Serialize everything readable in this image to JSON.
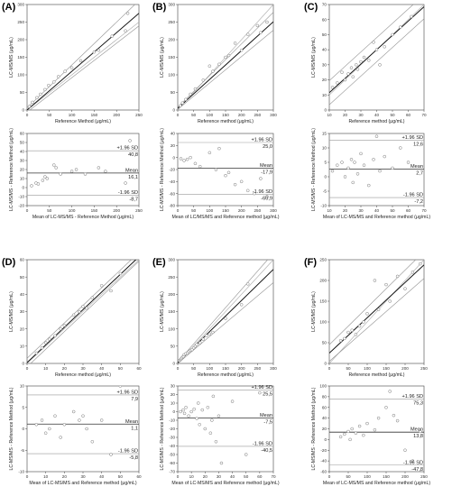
{
  "chart_data": [
    {
      "panel": "(A)",
      "type": "scatter",
      "plot": "regression",
      "xlabel": "Reference Method (μg/mL)",
      "ylabel": "LC-MS/MS (μg/mL)",
      "xlim": [
        0,
        250
      ],
      "ylim": [
        0,
        300
      ],
      "xticks": [
        0,
        50,
        100,
        150,
        200,
        250
      ],
      "yticks": [
        0,
        50,
        100,
        150,
        200,
        250,
        300
      ],
      "x": [
        5,
        12,
        22,
        30,
        40,
        48,
        60,
        70,
        85,
        100,
        120,
        150,
        160,
        190,
        220,
        225
      ],
      "y": [
        10,
        22,
        35,
        45,
        58,
        70,
        80,
        95,
        110,
        120,
        140,
        165,
        170,
        210,
        225,
        275
      ],
      "regression": {
        "intercept": 0,
        "slope": 1.1
      },
      "ci_upper": {
        "intercept": 6,
        "slope": 1.22
      },
      "ci_lower": {
        "intercept": -6,
        "slope": 0.98
      },
      "identity": {
        "intercept": 0,
        "slope": 1
      }
    },
    {
      "panel": "",
      "type": "scatter",
      "plot": "bland-altman",
      "xlabel": "Mean of LC-MS/MS - Reference Method (μg/mL)",
      "ylabel": "LC-MS/MS - Reference Method (μg/mL)",
      "xlim": [
        0,
        250
      ],
      "ylim": [
        -20,
        60
      ],
      "xticks": [
        0,
        50,
        100,
        150,
        200,
        250
      ],
      "yticks": [
        -20,
        -10,
        0,
        10,
        20,
        30,
        40,
        50,
        60
      ],
      "x": [
        10,
        20,
        25,
        35,
        40,
        45,
        60,
        65,
        75,
        100,
        110,
        130,
        160,
        175,
        220,
        230
      ],
      "y": [
        2,
        5,
        4,
        8,
        12,
        10,
        25,
        22,
        15,
        18,
        20,
        15,
        22,
        18,
        5,
        52
      ],
      "lines": [
        {
          "value": 40.8,
          "label": "+1.96 SD",
          "value_label": "40,8"
        },
        {
          "value": 16.1,
          "label": "Mean",
          "value_label": "16,1"
        },
        {
          "value": -8.7,
          "label": "-1.96 SD",
          "value_label": "-8,7"
        }
      ]
    },
    {
      "panel": "(B)",
      "type": "scatter",
      "plot": "regression",
      "xlabel": "Reference method (μg/mL)",
      "ylabel": "LC-MS/MS (μg/mL)",
      "xlim": [
        0,
        300
      ],
      "ylim": [
        0,
        300
      ],
      "xticks": [
        0,
        50,
        100,
        150,
        200,
        250,
        300
      ],
      "yticks": [
        0,
        50,
        100,
        150,
        200,
        250,
        300
      ],
      "x": [
        8,
        15,
        25,
        40,
        55,
        80,
        100,
        110,
        130,
        150,
        160,
        180,
        200,
        220,
        250,
        260,
        280
      ],
      "y": [
        12,
        20,
        30,
        45,
        60,
        85,
        125,
        110,
        130,
        150,
        155,
        190,
        170,
        215,
        240,
        220,
        250
      ],
      "regression": {
        "intercept": 5,
        "slope": 0.82
      },
      "ci_upper": {
        "intercept": 8,
        "slope": 0.9
      },
      "ci_lower": {
        "intercept": 2,
        "slope": 0.75
      },
      "identity": {
        "intercept": 0,
        "slope": 1
      }
    },
    {
      "panel": "",
      "type": "scatter",
      "plot": "bland-altman",
      "xlabel": "Mean of LC/MS/MS and Reference method (μg/mL)",
      "ylabel": "LC-MS/MS - Reference Method (μg/mL)",
      "xlim": [
        0,
        300
      ],
      "ylim": [
        -80,
        40
      ],
      "xticks": [
        0,
        50,
        100,
        150,
        200,
        250,
        300
      ],
      "yticks": [
        -80,
        -60,
        -40,
        -20,
        0,
        20,
        40
      ],
      "x": [
        10,
        20,
        30,
        40,
        55,
        70,
        100,
        120,
        130,
        150,
        160,
        180,
        200,
        220,
        240,
        260,
        280
      ],
      "y": [
        -2,
        -5,
        -3,
        0,
        -10,
        -15,
        8,
        -20,
        15,
        -30,
        -25,
        -45,
        -40,
        -55,
        -60,
        -35,
        -65
      ],
      "lines": [
        {
          "value": 25.0,
          "label": "+1.96 SD",
          "value_label": "25,0"
        },
        {
          "value": -17.9,
          "label": "Mean",
          "value_label": "-17,9"
        },
        {
          "value": -60.9,
          "label": "-1.96 SD",
          "value_label": "-60,9"
        }
      ]
    },
    {
      "panel": "(C)",
      "type": "scatter",
      "plot": "regression",
      "xlabel": "Reference method (μg/mL)",
      "ylabel": "LC-MS/MS (μg/mL)",
      "xlim": [
        10,
        70
      ],
      "ylim": [
        0,
        70
      ],
      "xticks": [
        10,
        20,
        30,
        40,
        50,
        60,
        70
      ],
      "yticks": [
        0,
        10,
        20,
        30,
        40,
        50,
        60,
        70
      ],
      "x": [
        12,
        15,
        18,
        20,
        22,
        24,
        25,
        27,
        28,
        30,
        32,
        35,
        38,
        40,
        42,
        45,
        50,
        55,
        62
      ],
      "y": [
        15,
        18,
        25,
        20,
        24,
        28,
        22,
        30,
        27,
        32,
        35,
        33,
        45,
        40,
        30,
        42,
        50,
        55,
        62
      ],
      "regression": {
        "intercept": 2,
        "slope": 0.95
      },
      "ci_upper": {
        "intercept": 10,
        "slope": 0.95
      },
      "ci_lower": {
        "intercept": -6,
        "slope": 0.95
      },
      "identity": {
        "intercept": 0,
        "slope": 1
      }
    },
    {
      "panel": "",
      "type": "scatter",
      "plot": "bland-altman",
      "xlabel": "Mean of LC-MS/MS and  Reference method (μg/mL)",
      "ylabel": "LC-MS/MS - Reference Method (μg/mL)",
      "xlim": [
        10,
        70
      ],
      "ylim": [
        -10,
        15
      ],
      "xticks": [
        10,
        20,
        30,
        40,
        50,
        60,
        70
      ],
      "yticks": [
        -10,
        -5,
        0,
        5,
        10,
        15
      ],
      "x": [
        12,
        15,
        18,
        20,
        22,
        24,
        25,
        26,
        28,
        30,
        32,
        35,
        38,
        40,
        42,
        45,
        50,
        55,
        60
      ],
      "y": [
        2,
        4,
        5,
        0,
        3,
        6,
        -2,
        5,
        1,
        8,
        4,
        -3,
        6,
        14,
        2,
        7,
        3,
        10,
        5
      ],
      "lines": [
        {
          "value": 12.6,
          "label": "+1.96 SD",
          "value_label": "12,6"
        },
        {
          "value": 2.7,
          "label": "Mean",
          "value_label": "2,7"
        },
        {
          "value": -7.2,
          "label": "-1.96 SD",
          "value_label": "-7,2"
        }
      ]
    },
    {
      "panel": "(D)",
      "type": "scatter",
      "plot": "regression",
      "xlabel": "Reference method (μg/mL)",
      "ylabel": "LC-MS/MS (μg/mL)",
      "xlim": [
        0,
        60
      ],
      "ylim": [
        0,
        60
      ],
      "xticks": [
        0,
        10,
        20,
        30,
        40,
        50,
        60
      ],
      "yticks": [
        0,
        10,
        20,
        30,
        40,
        50,
        60
      ],
      "x": [
        5,
        8,
        10,
        12,
        15,
        18,
        20,
        25,
        28,
        30,
        32,
        35,
        40,
        45,
        50
      ],
      "y": [
        6,
        9,
        12,
        14,
        16,
        20,
        22,
        28,
        30,
        33,
        32,
        38,
        45,
        42,
        52
      ],
      "regression": {
        "intercept": 0.5,
        "slope": 1.02
      },
      "ci_upper": {
        "intercept": 3,
        "slope": 1.02
      },
      "ci_lower": {
        "intercept": -2,
        "slope": 1.02
      },
      "identity": {
        "intercept": 0,
        "slope": 1
      }
    },
    {
      "panel": "",
      "type": "scatter",
      "plot": "bland-altman",
      "xlabel": "Mean of LC-MS/MS and Reference method (μg/mL)",
      "ylabel": "LC-MS/MS - Reference Method (μg/mL)",
      "xlim": [
        0,
        60
      ],
      "ylim": [
        -10,
        10
      ],
      "xticks": [
        0,
        10,
        20,
        30,
        40,
        50,
        60
      ],
      "yticks": [
        -10,
        -5,
        0,
        5,
        10
      ],
      "x": [
        5,
        8,
        10,
        12,
        15,
        18,
        20,
        25,
        28,
        30,
        32,
        35,
        40,
        45,
        50
      ],
      "y": [
        1,
        2,
        -1,
        0,
        3,
        -2,
        1,
        4,
        2,
        3,
        0,
        -3,
        2,
        -6,
        10
      ],
      "lines": [
        {
          "value": 7.9,
          "label": "+1.96 SD",
          "value_label": "7,9"
        },
        {
          "value": 1.1,
          "label": "Mean",
          "value_label": "1,1"
        },
        {
          "value": -5.8,
          "label": "-1.96 SD",
          "value_label": "-5,8"
        }
      ]
    },
    {
      "panel": "(E)",
      "type": "scatter",
      "plot": "regression",
      "xlabel": "Reference method (μg/mL)",
      "ylabel": "LC-MS/MS (μg/mL)",
      "xlim": [
        0,
        300
      ],
      "ylim": [
        0,
        300
      ],
      "xticks": [
        0,
        50,
        100,
        150,
        200,
        250,
        300
      ],
      "yticks": [
        0,
        50,
        100,
        150,
        200,
        250,
        300
      ],
      "x": [
        5,
        8,
        10,
        12,
        15,
        18,
        20,
        25,
        30,
        35,
        40,
        45,
        50,
        55,
        60,
        70,
        80,
        90,
        100,
        110,
        150,
        200,
        220
      ],
      "y": [
        8,
        10,
        12,
        15,
        18,
        20,
        25,
        28,
        30,
        35,
        38,
        40,
        45,
        50,
        55,
        60,
        70,
        80,
        85,
        90,
        130,
        170,
        230
      ],
      "regression": {
        "intercept": 2,
        "slope": 0.9
      },
      "ci_upper": {
        "intercept": 4,
        "slope": 1.05
      },
      "ci_lower": {
        "intercept": 0,
        "slope": 0.78
      },
      "identity": {
        "intercept": 0,
        "slope": 1
      }
    },
    {
      "panel": "",
      "type": "scatter",
      "plot": "bland-altman",
      "xlabel": "Mean of LC-MS/MS and Reference method (μg/mL)",
      "ylabel": "LC-MS/MS - Reference Method (μg/mL)",
      "xlim": [
        0,
        70
      ],
      "ylim": [
        -70,
        30
      ],
      "xticks": [
        0,
        10,
        20,
        30,
        40,
        50,
        60,
        70
      ],
      "yticks": [
        -70,
        -60,
        -50,
        -40,
        -30,
        -20,
        -10,
        0,
        10,
        20,
        30
      ],
      "x": [
        2,
        4,
        5,
        6,
        8,
        10,
        12,
        14,
        15,
        16,
        18,
        20,
        22,
        24,
        25,
        26,
        28,
        30,
        32,
        40,
        50,
        60
      ],
      "y": [
        0,
        2,
        -2,
        5,
        -5,
        0,
        3,
        -8,
        10,
        -15,
        2,
        -20,
        5,
        -25,
        -10,
        18,
        -35,
        -5,
        -60,
        12,
        -50,
        22
      ],
      "lines": [
        {
          "value": 25.5,
          "label": "+1.96 SD",
          "value_label": "25,5"
        },
        {
          "value": -7.5,
          "label": "Mean",
          "value_label": "-7,5"
        },
        {
          "value": -40.5,
          "label": "-1.96 SD",
          "value_label": "-40,5"
        }
      ]
    },
    {
      "panel": "(F)",
      "type": "scatter",
      "plot": "regression",
      "xlabel": "Reference method (μg/mL)",
      "ylabel": "LC-MS/MS (μg/mL)",
      "xlim": [
        0,
        250
      ],
      "ylim": [
        0,
        250
      ],
      "xticks": [
        0,
        50,
        100,
        150,
        200,
        250
      ],
      "yticks": [
        0,
        50,
        100,
        150,
        200,
        250
      ],
      "x": [
        30,
        40,
        50,
        60,
        70,
        80,
        90,
        100,
        120,
        130,
        150,
        160,
        180,
        200,
        220,
        240
      ],
      "y": [
        55,
        60,
        75,
        80,
        70,
        90,
        100,
        120,
        200,
        130,
        190,
        150,
        210,
        180,
        220,
        240
      ],
      "regression": {
        "intercept": 25,
        "slope": 0.85
      },
      "ci_upper": {
        "intercept": 45,
        "slope": 0.9
      },
      "ci_lower": {
        "intercept": 5,
        "slope": 0.8
      },
      "identity": {
        "intercept": 0,
        "slope": 1
      }
    },
    {
      "panel": "",
      "type": "scatter",
      "plot": "bland-altman",
      "xlabel": "Mean of LC-MS/MS and Reference method (μg/mL)",
      "ylabel": "LC-MS/MS - Reference Method (μg/mL)",
      "xlim": [
        0,
        250
      ],
      "ylim": [
        -60,
        100
      ],
      "xticks": [
        0,
        50,
        100,
        150,
        200,
        250
      ],
      "yticks": [
        -60,
        -40,
        -20,
        0,
        20,
        40,
        60,
        80,
        100
      ],
      "x": [
        30,
        40,
        50,
        55,
        60,
        70,
        80,
        90,
        100,
        120,
        130,
        150,
        160,
        170,
        180,
        200,
        220,
        240
      ],
      "y": [
        5,
        10,
        15,
        0,
        20,
        12,
        25,
        8,
        30,
        18,
        40,
        60,
        90,
        45,
        35,
        -20,
        -40,
        15
      ],
      "lines": [
        {
          "value": 75.3,
          "label": "+1.96 SD",
          "value_label": "75,3"
        },
        {
          "value": 13.8,
          "label": "Mean",
          "value_label": "13,8"
        },
        {
          "value": -47.8,
          "label": "-1.96 SD",
          "value_label": "-47,8"
        }
      ]
    }
  ]
}
